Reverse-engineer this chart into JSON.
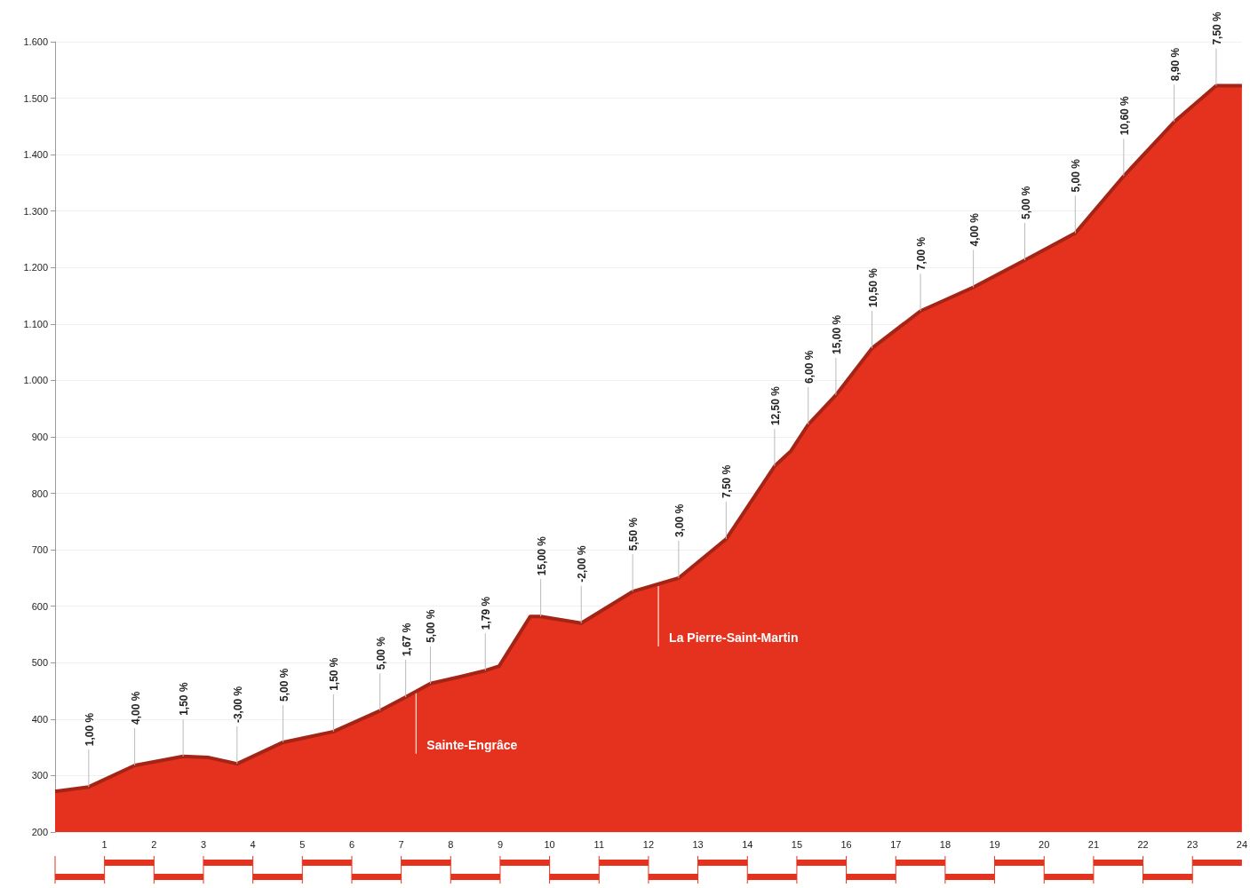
{
  "chart_data": {
    "type": "area",
    "x": [
      0,
      0.68,
      1.61,
      2.59,
      3.11,
      3.68,
      4.61,
      5.63,
      6.57,
      7.09,
      7.59,
      8.18,
      8.7,
      8.98,
      9.61,
      9.82,
      10.64,
      11.68,
      12.61,
      13.57,
      14.55,
      14.88,
      15.23,
      15.79,
      16.52,
      17.5,
      18.57,
      19.61,
      20.63,
      21.61,
      22.63,
      23.48,
      24
    ],
    "series": [
      {
        "color": "#e4321e",
        "values": [
          272,
          280,
          318,
          334,
          332,
          321,
          359,
          378,
          415,
          439,
          463,
          475,
          486,
          494,
          582,
          582,
          570,
          626,
          650,
          719,
          848,
          875,
          922,
          974,
          1057,
          1123,
          1165,
          1213,
          1261,
          1362,
          1458,
          1522,
          1522
        ]
      }
    ],
    "xlim": [
      0,
      24
    ],
    "xticks": [
      1,
      2,
      3,
      4,
      5,
      6,
      7,
      8,
      9,
      10,
      11,
      12,
      13,
      14,
      15,
      16,
      17,
      18,
      19,
      20,
      21,
      22,
      23,
      24
    ],
    "ylim": [
      200,
      1600
    ],
    "yticks": [
      200,
      300,
      400,
      500,
      600,
      700,
      800,
      900,
      {
        "value": 1000,
        "label": "1.000"
      },
      {
        "value": 1100,
        "label": "1.100"
      },
      {
        "value": 1200,
        "label": "1.200"
      },
      {
        "value": 1300,
        "label": "1.300"
      },
      {
        "value": 1400,
        "label": "1.400"
      },
      {
        "value": 1500,
        "label": "1.500"
      },
      {
        "value": 1600,
        "label": "1.600"
      }
    ],
    "grid": "y",
    "marker": "none",
    "annotations": [
      {
        "text": "1,00 %",
        "x": 0.68,
        "y": 280
      },
      {
        "text": "4,00 %",
        "x": 1.61,
        "y": 318
      },
      {
        "text": "1,50 %",
        "x": 2.59,
        "y": 334
      },
      {
        "text": "-3,00 %",
        "x": 3.68,
        "y": 321
      },
      {
        "text": "5,00 %",
        "x": 4.61,
        "y": 359
      },
      {
        "text": "1,50 %",
        "x": 5.63,
        "y": 378
      },
      {
        "text": "5,00 %",
        "x": 6.57,
        "y": 415
      },
      {
        "text": "1,67 %",
        "x": 7.09,
        "y": 439
      },
      {
        "text": "5,00 %",
        "x": 7.59,
        "y": 463
      },
      {
        "text": "1,79 %",
        "x": 8.7,
        "y": 486
      },
      {
        "text": "15,00 %",
        "x": 9.82,
        "y": 582
      },
      {
        "text": "-2,00 %",
        "x": 10.64,
        "y": 570
      },
      {
        "text": "5,50 %",
        "x": 11.68,
        "y": 626
      },
      {
        "text": "3,00 %",
        "x": 12.61,
        "y": 650
      },
      {
        "text": "7,50 %",
        "x": 13.57,
        "y": 719
      },
      {
        "text": "12,50 %",
        "x": 14.55,
        "y": 848
      },
      {
        "text": "6,00 %",
        "x": 15.23,
        "y": 922
      },
      {
        "text": "15,00 %",
        "x": 15.79,
        "y": 974
      },
      {
        "text": "10,50 %",
        "x": 16.52,
        "y": 1057
      },
      {
        "text": "7,00 %",
        "x": 17.5,
        "y": 1123
      },
      {
        "text": "4,00 %",
        "x": 18.57,
        "y": 1165
      },
      {
        "text": "5,00 %",
        "x": 19.61,
        "y": 1213
      },
      {
        "text": "5,00 %",
        "x": 20.63,
        "y": 1261
      },
      {
        "text": "10,60 %",
        "x": 21.61,
        "y": 1362
      },
      {
        "text": "8,90 %",
        "x": 22.63,
        "y": 1458
      },
      {
        "text": "7,50 %",
        "x": 23.48,
        "y": 1522
      },
      {
        "text": "Sainte-Engrâce",
        "x": 7.3,
        "y": 449
      },
      {
        "text": "La Pierre-Saint-Martin",
        "x": 12.2,
        "y": 639
      }
    ]
  }
}
